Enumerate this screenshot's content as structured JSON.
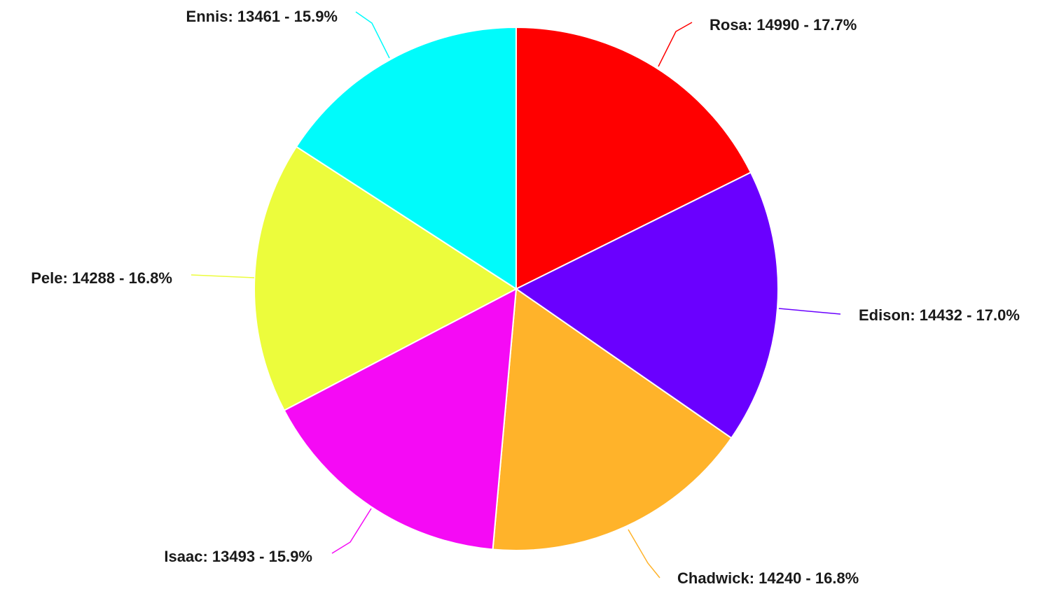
{
  "chart_data": {
    "type": "pie",
    "categories": [
      "Rosa",
      "Edison",
      "Chadwick",
      "Isaac",
      "Pele",
      "Ennis"
    ],
    "values": [
      14990,
      14432,
      14240,
      13493,
      14288,
      13461
    ],
    "percent_labels": [
      "17.7%",
      "17.0%",
      "16.8%",
      "15.9%",
      "16.8%",
      "15.9%"
    ],
    "labels": [
      "Rosa: 14990 - 17.7%",
      "Edison: 14432 - 17.0%",
      "Chadwick: 14240 - 16.8%",
      "Isaac: 13493 - 15.9%",
      "Pele: 14288 - 16.8%",
      "Ennis: 13461 - 15.9%"
    ],
    "colors": [
      "#ff0000",
      "#6a00ff",
      "#ffb32a",
      "#f50af5",
      "#ecfc3c",
      "#00fbfb"
    ],
    "start_angle": "12 o'clock",
    "direction": "clockwise",
    "legend": "none",
    "title": ""
  }
}
